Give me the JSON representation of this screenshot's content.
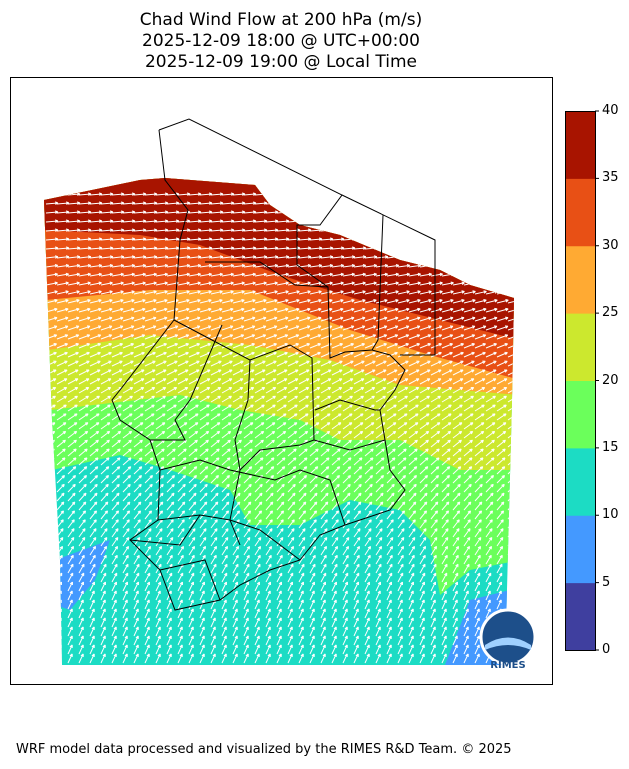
{
  "title": {
    "line1": "Chad Wind Flow at 200 hPa (m/s)",
    "line2": "2025-12-09 18:00 @ UTC+00:00",
    "line3": "2025-12-09 19:00 @ Local Time"
  },
  "colorbar": {
    "ticks": [
      "0",
      "5",
      "10",
      "15",
      "20",
      "25",
      "30",
      "35",
      "40"
    ],
    "levels": [
      0,
      5,
      10,
      15,
      20,
      25,
      30,
      35,
      40
    ],
    "colors": [
      "#3f3f9f",
      "#4499ff",
      "#1cdcc4",
      "#6bff5b",
      "#cce82e",
      "#ffaa33",
      "#e85015",
      "#a81400"
    ]
  },
  "logo": {
    "text": "RIMES"
  },
  "footer": "WRF model data processed and visualized by the RIMES R&D Team. © 2025"
}
